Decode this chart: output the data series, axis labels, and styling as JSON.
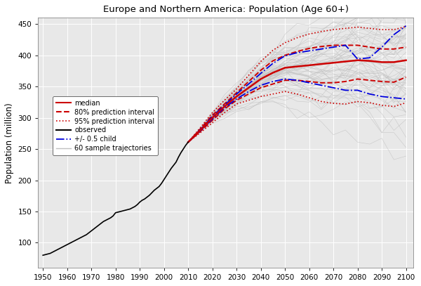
{
  "title": "Europe and Northern America: Population (Age 60+)",
  "xlabel": "",
  "ylabel": "Population (million)",
  "xlim": [
    1948,
    2103
  ],
  "ylim": [
    60,
    460
  ],
  "yticks": [
    100,
    150,
    200,
    250,
    300,
    350,
    400,
    450
  ],
  "xticks": [
    1950,
    1960,
    1970,
    1980,
    1990,
    2000,
    2010,
    2020,
    2030,
    2040,
    2050,
    2060,
    2070,
    2080,
    2090,
    2100
  ],
  "background_color": "#e8e8e8",
  "grid_color": "#ffffff",
  "observed_color": "#000000",
  "median_color": "#cc0000",
  "pi80_color": "#cc0000",
  "pi95_color": "#cc0000",
  "sample_color": "#c0c0c0",
  "child_color": "#0000dd",
  "projection_start_year": 2010,
  "observed_years": [
    1950,
    1951,
    1952,
    1953,
    1954,
    1955,
    1956,
    1957,
    1958,
    1959,
    1960,
    1961,
    1962,
    1963,
    1964,
    1965,
    1966,
    1967,
    1968,
    1969,
    1970,
    1971,
    1972,
    1973,
    1974,
    1975,
    1976,
    1977,
    1978,
    1979,
    1980,
    1981,
    1982,
    1983,
    1984,
    1985,
    1986,
    1987,
    1988,
    1989,
    1990,
    1991,
    1992,
    1993,
    1994,
    1995,
    1996,
    1997,
    1998,
    1999,
    2000,
    2001,
    2002,
    2003,
    2004,
    2005,
    2006,
    2007,
    2008,
    2009,
    2010
  ],
  "observed_values": [
    80,
    81,
    82,
    83,
    85,
    87,
    89,
    91,
    93,
    95,
    97,
    99,
    101,
    103,
    105,
    107,
    109,
    111,
    113,
    116,
    119,
    122,
    125,
    128,
    131,
    134,
    136,
    138,
    140,
    143,
    148,
    149,
    150,
    151,
    152,
    153,
    154,
    156,
    158,
    161,
    165,
    168,
    170,
    173,
    176,
    180,
    184,
    187,
    190,
    195,
    201,
    207,
    213,
    219,
    224,
    229,
    237,
    244,
    250,
    256,
    261
  ],
  "projection_years": [
    2010,
    2015,
    2020,
    2025,
    2030,
    2035,
    2040,
    2045,
    2050,
    2055,
    2060,
    2065,
    2070,
    2075,
    2080,
    2085,
    2090,
    2095,
    2100
  ],
  "median_values": [
    261,
    280,
    300,
    318,
    334,
    348,
    362,
    372,
    380,
    382,
    384,
    386,
    388,
    390,
    392,
    391,
    389,
    389,
    392
  ],
  "pi80_upper": [
    261,
    282,
    304,
    322,
    340,
    358,
    376,
    391,
    400,
    406,
    411,
    414,
    416,
    416,
    416,
    413,
    410,
    410,
    413
  ],
  "pi80_lower": [
    261,
    278,
    296,
    314,
    328,
    338,
    348,
    354,
    360,
    360,
    358,
    356,
    356,
    358,
    362,
    360,
    358,
    357,
    365
  ],
  "pi95_upper": [
    261,
    284,
    308,
    328,
    346,
    368,
    390,
    408,
    420,
    428,
    434,
    438,
    441,
    443,
    445,
    443,
    441,
    441,
    446
  ],
  "pi95_lower": [
    261,
    276,
    292,
    308,
    322,
    328,
    334,
    338,
    342,
    338,
    332,
    326,
    323,
    322,
    326,
    324,
    320,
    318,
    324
  ],
  "child_high_values": [
    261,
    281,
    302,
    320,
    338,
    354,
    371,
    387,
    399,
    404,
    407,
    410,
    413,
    416,
    394,
    396,
    413,
    433,
    447
  ],
  "child_low_values": [
    261,
    279,
    298,
    316,
    330,
    342,
    352,
    358,
    362,
    360,
    356,
    352,
    348,
    344,
    344,
    338,
    334,
    332,
    330
  ],
  "num_sample_trajectories": 60
}
